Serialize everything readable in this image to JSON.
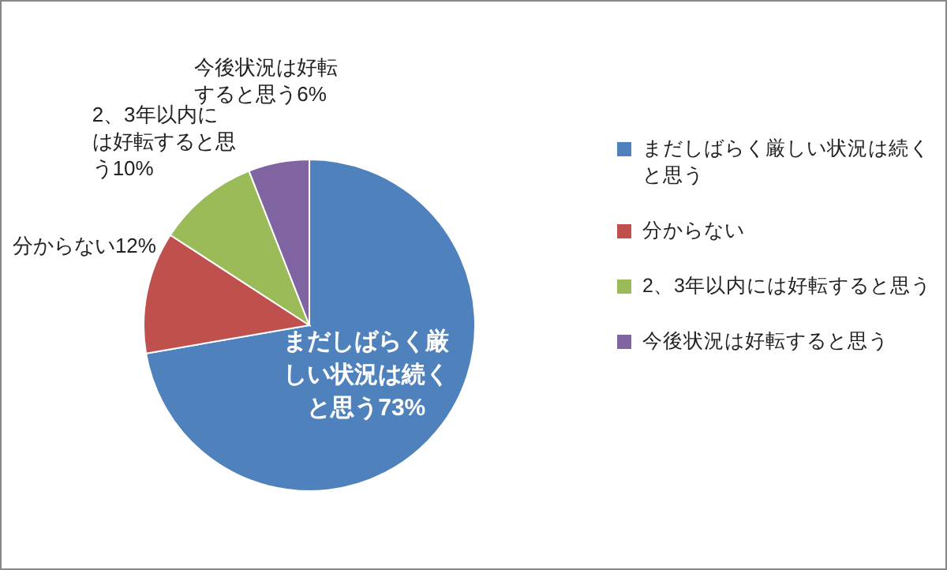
{
  "chart_data": {
    "type": "pie",
    "categories": [
      "まだしばらく厳しい状況は続くと思う",
      "分からない",
      "2、3年以内には好転すると思う",
      "今後状況は好転すると思う"
    ],
    "values": [
      73,
      12,
      10,
      6
    ],
    "colors": [
      "#4f81bd",
      "#c0504d",
      "#9bbb59",
      "#8064a2"
    ],
    "value_labels": [
      "まだしばらく厳しい状況は続くと思う73%",
      "分からない12%",
      "2、3年以内には好転すると思う10%",
      "今後状況は好転すると思う6%"
    ],
    "legend": "right"
  }
}
